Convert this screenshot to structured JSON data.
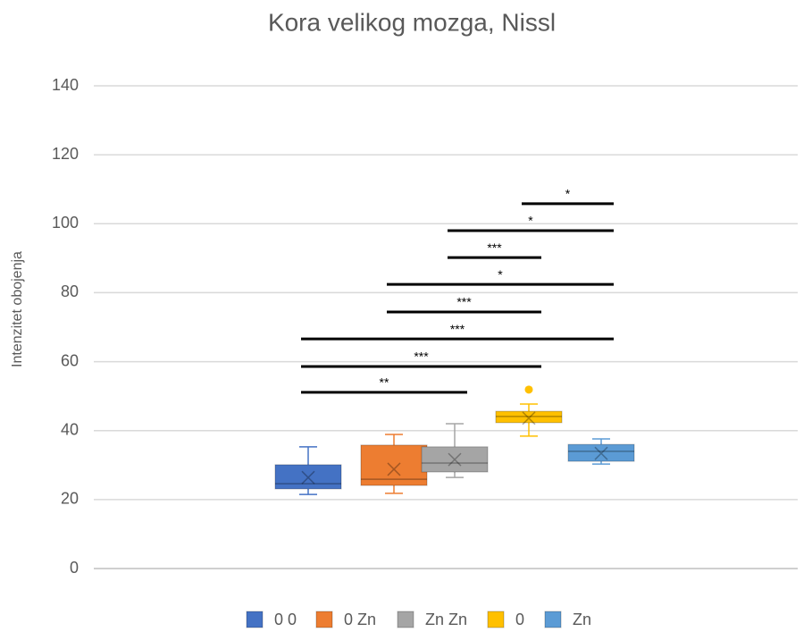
{
  "chart_data": {
    "type": "box",
    "title": "Kora velikog mozga, Nissl",
    "y_label": "Intenzitet obojenja",
    "ylim": [
      0,
      140
    ],
    "yticks": [
      0,
      20,
      40,
      60,
      80,
      100,
      120,
      140
    ],
    "grid": true,
    "legend": "bottom",
    "series": [
      {
        "name": "0 0",
        "color": "#4472c4",
        "min": 21.5,
        "q1": 23.1,
        "median": 24.6,
        "q3": 30.1,
        "max": 35.3,
        "mean": 26.4,
        "outliers": []
      },
      {
        "name": "0 Zn",
        "color": "#ed7d31",
        "min": 21.8,
        "q1": 24.1,
        "median": 25.9,
        "q3": 35.8,
        "max": 38.9,
        "mean": 28.8,
        "outliers": []
      },
      {
        "name": "Zn Zn",
        "color": "#a5a5a5",
        "min": 26.4,
        "q1": 28,
        "median": 30.6,
        "q3": 35.3,
        "max": 42,
        "mean": 31.6,
        "outliers": []
      },
      {
        "name": "0",
        "color": "#ffc000",
        "min": 38.4,
        "q1": 42.3,
        "median": 44.1,
        "q3": 45.6,
        "max": 47.7,
        "mean": 43.6,
        "outliers": [
          51.9
        ]
      },
      {
        "name": "Zn",
        "color": "#5b9bd5",
        "min": 30.3,
        "q1": 31.1,
        "median": 34,
        "q3": 36,
        "max": 37.6,
        "mean": 33.4,
        "outliers": []
      }
    ],
    "significance": [
      {
        "label": "*",
        "y": 105.8,
        "between": [
          "0",
          "Zn"
        ]
      },
      {
        "label": "*",
        "y": 98,
        "between": [
          "Zn Zn",
          "Zn"
        ]
      },
      {
        "label": "***",
        "y": 90.2,
        "between": [
          "Zn Zn",
          "0"
        ]
      },
      {
        "label": "*",
        "y": 82.4,
        "between": [
          "0 Zn",
          "Zn"
        ]
      },
      {
        "label": "***",
        "y": 74.4,
        "between": [
          "0 Zn",
          "0"
        ]
      },
      {
        "label": "***",
        "y": 66.6,
        "between": [
          "0 0",
          "Zn"
        ]
      },
      {
        "label": "***",
        "y": 58.6,
        "between": [
          "0 0",
          "0"
        ]
      },
      {
        "label": "**",
        "y": 51.1,
        "between": [
          "0 0",
          "Zn Zn"
        ]
      }
    ]
  }
}
